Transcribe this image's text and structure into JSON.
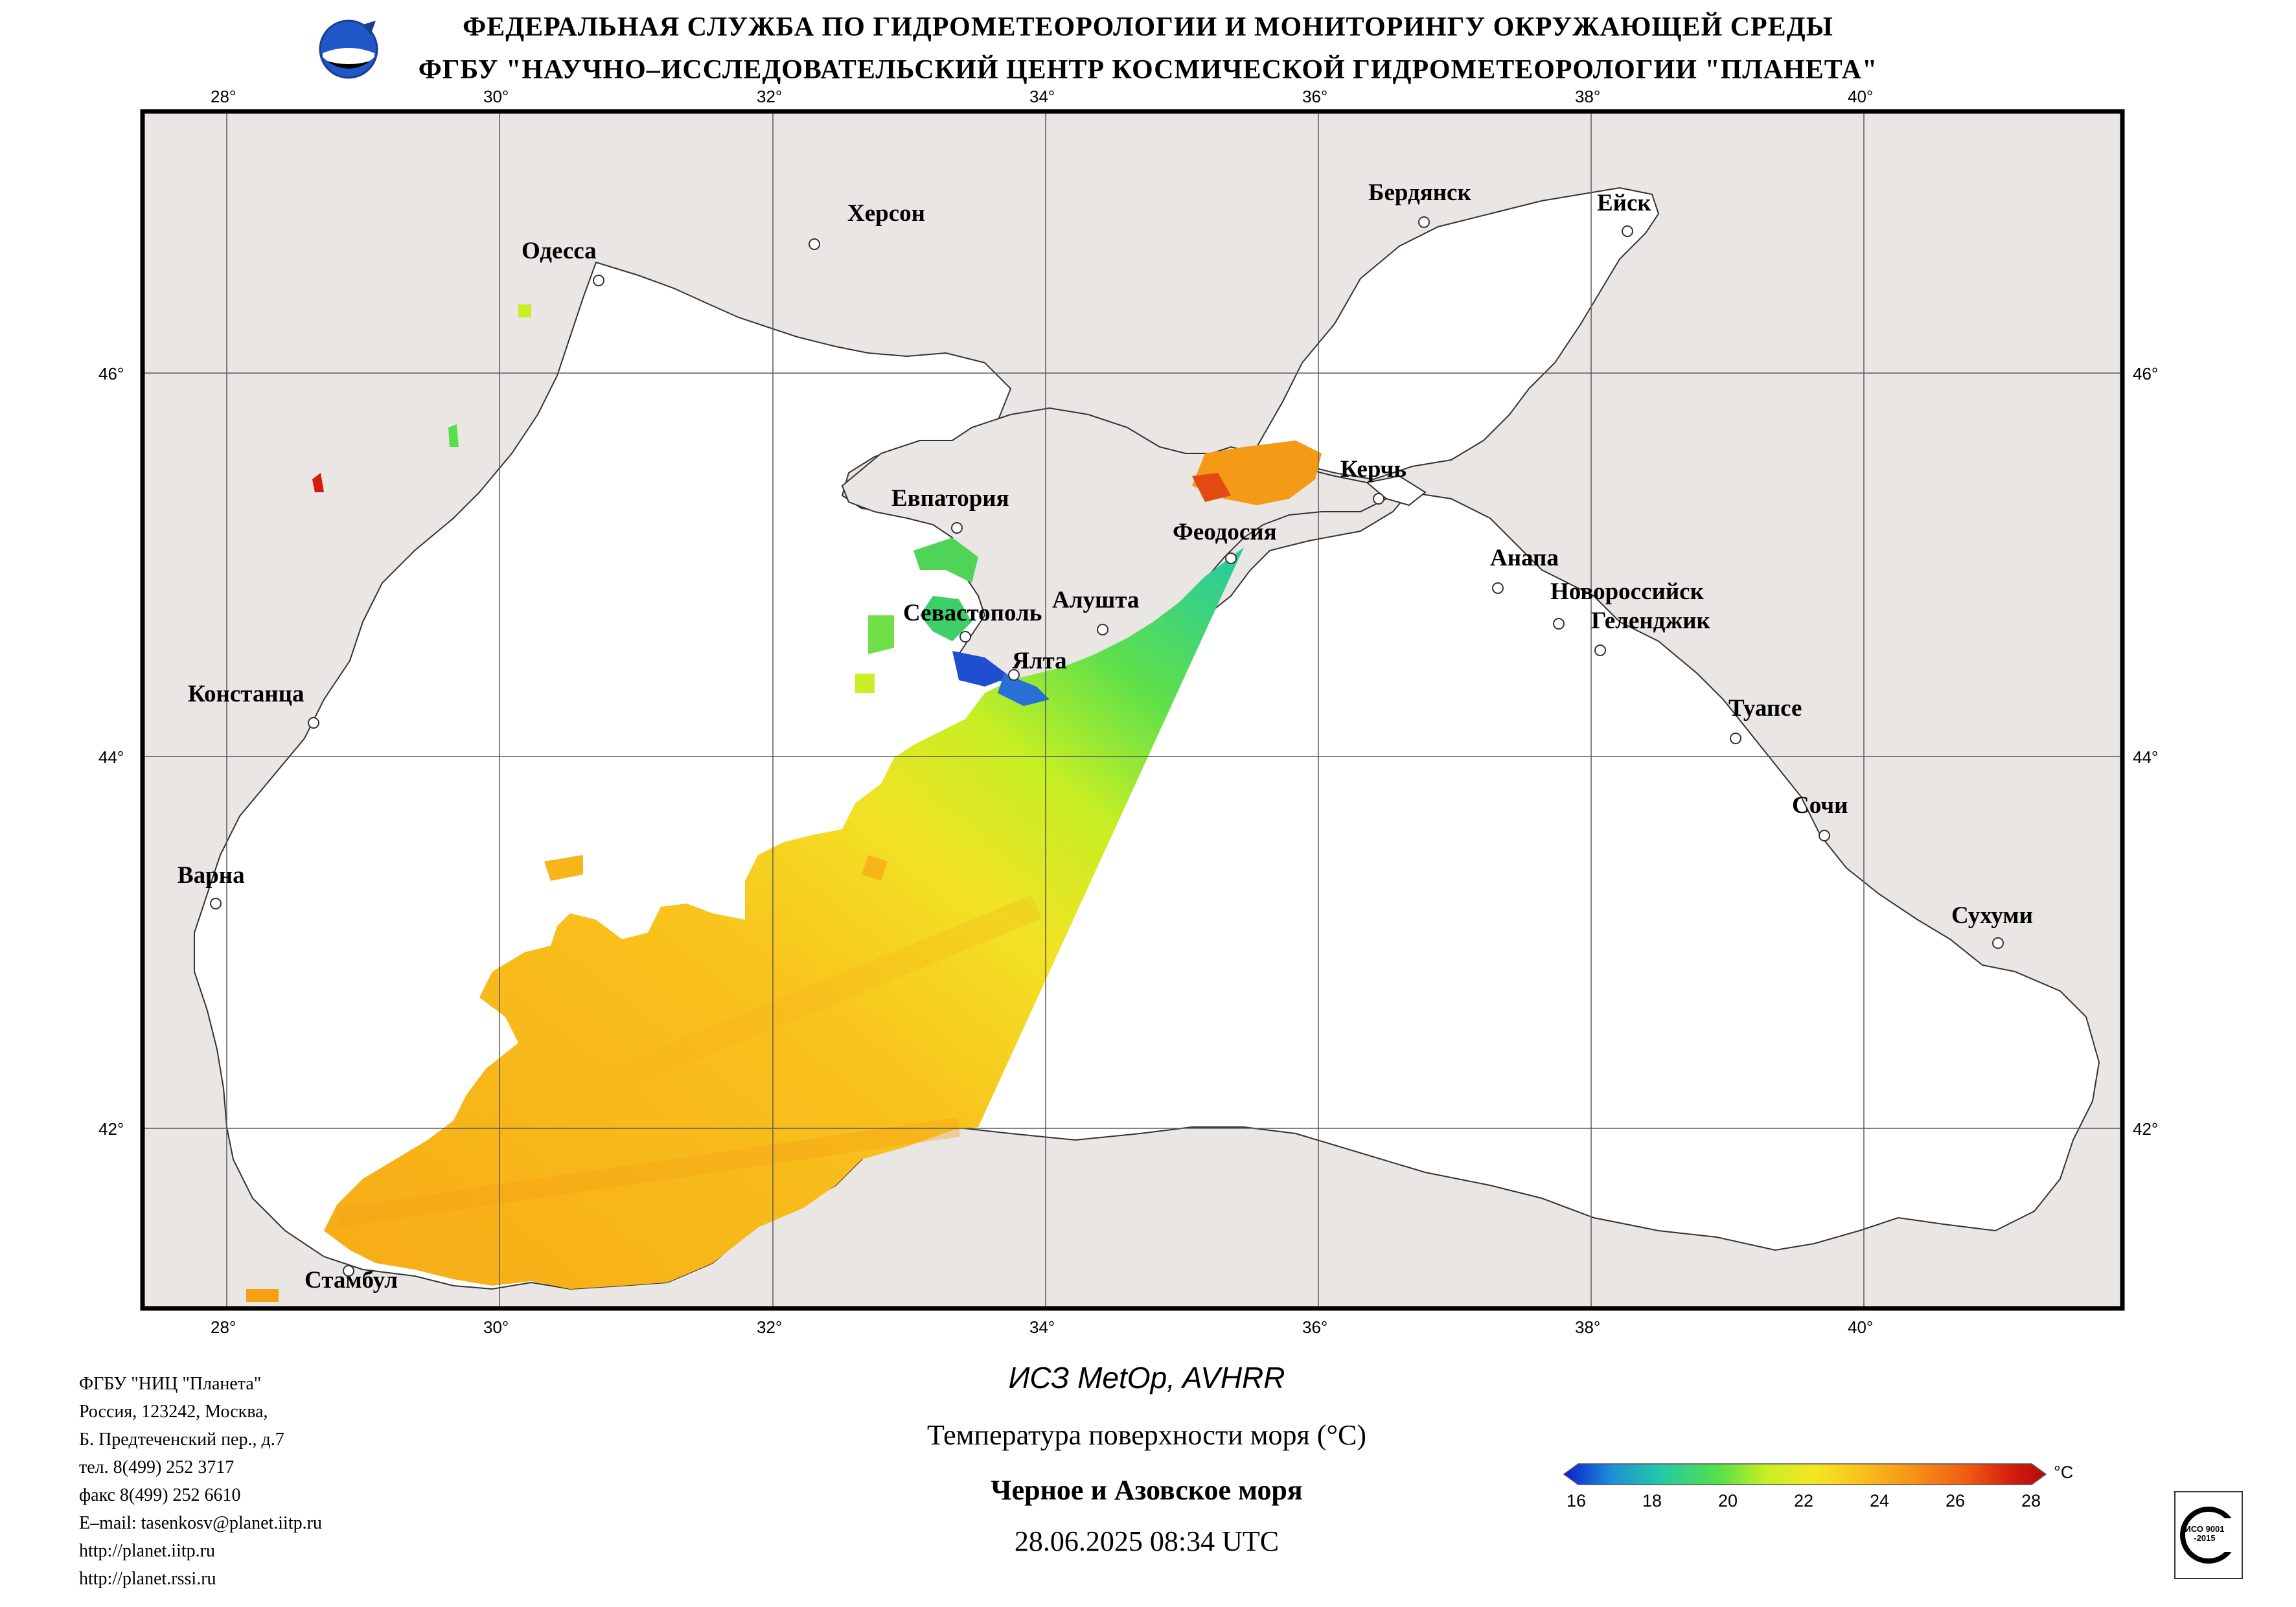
{
  "header": {
    "line1": "ФЕДЕРАЛЬНАЯ СЛУЖБА ПО ГИДРОМЕТЕОРОЛОГИИ И МОНИТОРИНГУ ОКРУЖАЮЩЕЙ СРЕДЫ",
    "line2": "ФГБУ \"НАУЧНО–ИССЛЕДОВАТЕЛЬСКИЙ ЦЕНТР КОСМИЧЕСКОЙ ГИДРОМЕТЕОРОЛОГИИ \"ПЛАНЕТА\""
  },
  "map": {
    "lon_ticks": [
      "28°",
      "30°",
      "32°",
      "34°",
      "36°",
      "38°",
      "40°"
    ],
    "lat_ticks": [
      "46°",
      "44°",
      "42°"
    ],
    "cities": [
      {
        "name": "Одесса"
      },
      {
        "name": "Херсон"
      },
      {
        "name": "Бердянск"
      },
      {
        "name": "Ейск"
      },
      {
        "name": "Евпатория"
      },
      {
        "name": "Керчь"
      },
      {
        "name": "Феодосия"
      },
      {
        "name": "Анапа"
      },
      {
        "name": "Севастополь"
      },
      {
        "name": "Алушта"
      },
      {
        "name": "Новороссийск"
      },
      {
        "name": "Геленджик"
      },
      {
        "name": "Ялта"
      },
      {
        "name": "Констанца"
      },
      {
        "name": "Туапсе"
      },
      {
        "name": "Сочи"
      },
      {
        "name": "Варна"
      },
      {
        "name": "Сухуми"
      },
      {
        "name": "Стамбул"
      }
    ],
    "colors": {
      "land": "#e9e6e3",
      "sea": "#ffffff",
      "grid": "#5a5a5a",
      "border": "#000000"
    }
  },
  "footer": {
    "org_lines": [
      "ФГБУ \"НИЦ \"Планета\"",
      "Россия, 123242, Москва,",
      "Б. Предтеченский пер., д.7",
      "тел. 8(499) 252 3717",
      "факс 8(499) 252 6610",
      "E–mail: tasenkosv@planet.iitp.ru",
      "http://planet.iitp.ru",
      "http://planet.rssi.ru"
    ],
    "satellite": "ИСЗ MetOp, AVHRR",
    "product": "Температура поверхности моря (°C)",
    "region": "Черное и Азовское моря",
    "datetime": "28.06.2025 08:34 UTC"
  },
  "colorbar": {
    "unit": "°C",
    "ticks": [
      "16",
      "18",
      "20",
      "22",
      "24",
      "26",
      "28"
    ],
    "min": 16,
    "max": 28,
    "colors": [
      "#0a1fd0",
      "#1f8fd6",
      "#22c9a6",
      "#54e04a",
      "#c7ef24",
      "#f6e624",
      "#f9c01c",
      "#f79416",
      "#ee5a12",
      "#d51c0f",
      "#b20c0c"
    ]
  },
  "badge": {
    "text": "ИСО 9001 -2015"
  }
}
